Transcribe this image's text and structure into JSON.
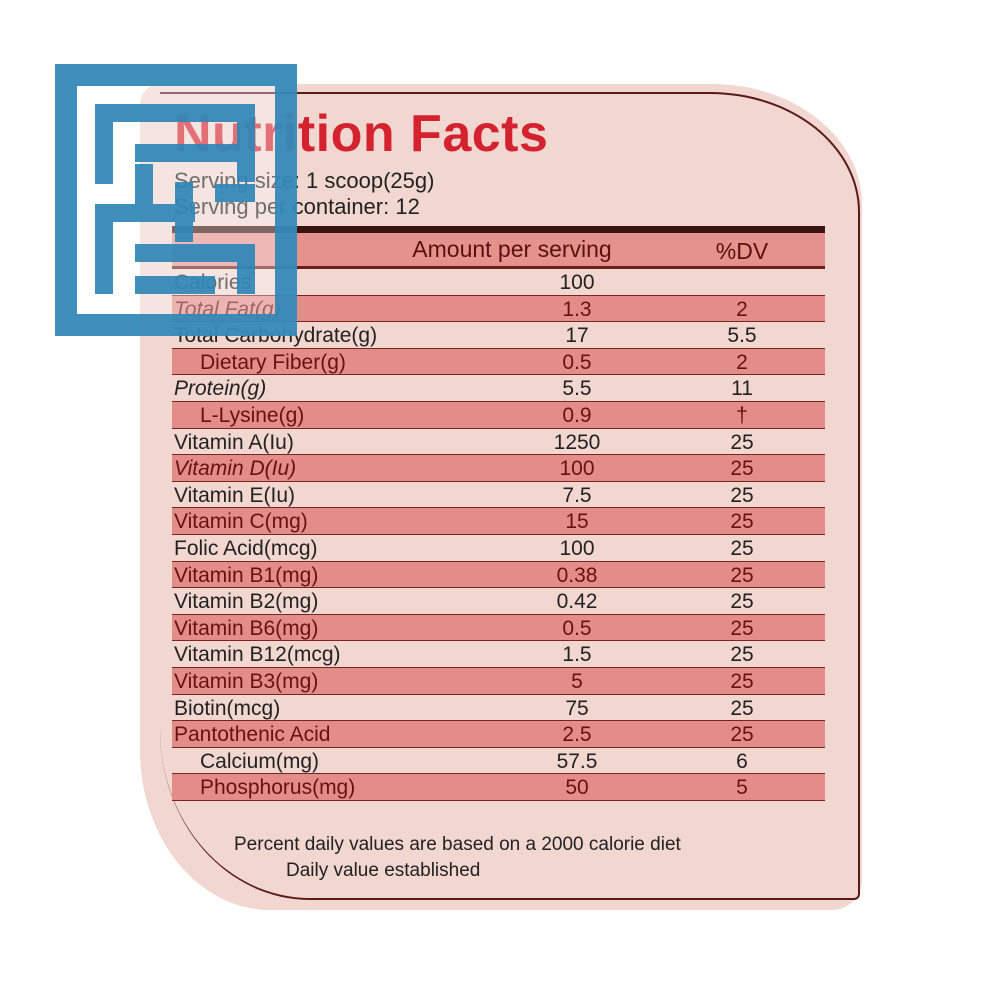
{
  "label": {
    "title": "Nutrition Facts",
    "serving_size": "Serving size: 1 scoop(25g)",
    "servings_per_container": "Serving per container: 12",
    "header": {
      "amount": "Amount per serving",
      "dv": "%DV"
    },
    "rows": [
      {
        "name": "Calories",
        "amount": "100",
        "dv": "",
        "indent": 0,
        "italic": false
      },
      {
        "name": "Total Fat(g)",
        "amount": "1.3",
        "dv": "2",
        "indent": 0,
        "italic": true
      },
      {
        "name": "Total Carbohydrate(g)",
        "amount": "17",
        "dv": "5.5",
        "indent": 0,
        "italic": false
      },
      {
        "name": "Dietary Fiber(g)",
        "amount": "0.5",
        "dv": "2",
        "indent": 1,
        "italic": false
      },
      {
        "name": "Protein(g)",
        "amount": "5.5",
        "dv": "11",
        "indent": 0,
        "italic": true
      },
      {
        "name": "L-Lysine(g)",
        "amount": "0.9",
        "dv": "†",
        "indent": 1,
        "italic": false
      },
      {
        "name": "Vitamin A(Iu)",
        "amount": "1250",
        "dv": "25",
        "indent": 0,
        "italic": false
      },
      {
        "name": "Vitamin D(Iu)",
        "amount": "100",
        "dv": "25",
        "indent": 0,
        "italic": true
      },
      {
        "name": "Vitamin E(Iu)",
        "amount": "7.5",
        "dv": "25",
        "indent": 0,
        "italic": false
      },
      {
        "name": "Vitamin C(mg)",
        "amount": "15",
        "dv": "25",
        "indent": 0,
        "italic": false
      },
      {
        "name": "Folic Acid(mcg)",
        "amount": "100",
        "dv": "25",
        "indent": 0,
        "italic": false
      },
      {
        "name": "Vitamin B1(mg)",
        "amount": "0.38",
        "dv": "25",
        "indent": 0,
        "italic": false
      },
      {
        "name": "Vitamin B2(mg)",
        "amount": "0.42",
        "dv": "25",
        "indent": 0,
        "italic": false
      },
      {
        "name": "Vitamin B6(mg)",
        "amount": "0.5",
        "dv": "25",
        "indent": 0,
        "italic": false
      },
      {
        "name": "Vitamin B12(mcg)",
        "amount": "1.5",
        "dv": "25",
        "indent": 0,
        "italic": false
      },
      {
        "name": "Vitamin B3(mg)",
        "amount": "5",
        "dv": "25",
        "indent": 0,
        "italic": false
      },
      {
        "name": "Biotin(mcg)",
        "amount": "75",
        "dv": "25",
        "indent": 0,
        "italic": false
      },
      {
        "name": "Pantothenic Acid",
        "amount": "2.5",
        "dv": "25",
        "indent": 0,
        "italic": false
      },
      {
        "name": "Calcium(mg)",
        "amount": "57.5",
        "dv": "6",
        "indent": 1,
        "italic": false
      },
      {
        "name": "Phosphorus(mg)",
        "amount": "50",
        "dv": "5",
        "indent": 1,
        "italic": false
      }
    ],
    "footnote_1": "Percent daily values are based on a 2000 calorie diet",
    "footnote_2": "Daily value established"
  },
  "colors": {
    "title_red": "#d4232f",
    "shade": "#e28d88",
    "card": "#f2d6d0",
    "logo_blue": "#2f86b8"
  },
  "logo": {
    "icon": "square-kufic-watermark-icon"
  }
}
